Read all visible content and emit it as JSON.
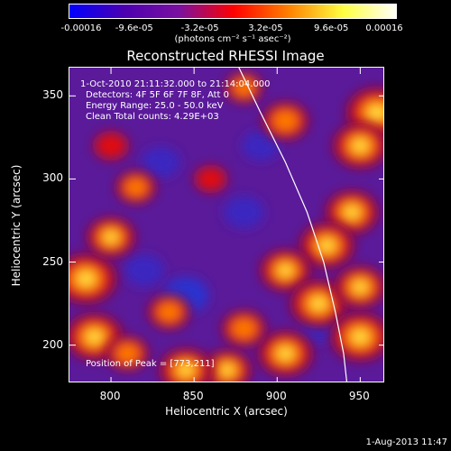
{
  "colorbar": {
    "ticks": [
      "-0.00016",
      "-9.6e-05",
      "-3.2e-05",
      "3.2e-05",
      "9.6e-05",
      "0.00016"
    ],
    "units_label": "(photons cm⁻² s⁻¹ asec⁻²)",
    "range": [
      -0.00016,
      0.00016
    ],
    "colors": [
      "#0000ff",
      "#4b00b0",
      "#7a10a0",
      "#ff0000",
      "#ff8000",
      "#ffff40",
      "#ffffff"
    ]
  },
  "chart_data": {
    "type": "heatmap",
    "title": "Reconstructed RHESSI Image",
    "xlabel": "Heliocentric X (arcsec)",
    "ylabel": "Heliocentric Y (arcsec)",
    "xlim": [
      775,
      965
    ],
    "ylim": [
      177,
      367
    ],
    "x_ticks": [
      800,
      850,
      900,
      950
    ],
    "y_ticks": [
      200,
      250,
      300,
      350
    ],
    "annotations": {
      "time": "1-Oct-2010 21:11:32.000 to 21:14:04.000",
      "detectors": "Detectors: 4F 5F 6F 7F 8F, Att 0",
      "energy": "Energy Range: 25.0 - 50.0 keV",
      "clean": "Clean    Total counts: 4.29E+03",
      "peak": "Position of Peak = [773,211]"
    },
    "limb_curve": [
      [
        877,
        367
      ],
      [
        890,
        340
      ],
      [
        905,
        310
      ],
      [
        918,
        280
      ],
      [
        928,
        250
      ],
      [
        935,
        220
      ],
      [
        940,
        195
      ],
      [
        942,
        177
      ]
    ],
    "hotspots": [
      {
        "x": 785,
        "y": 240,
        "v": 1.0
      },
      {
        "x": 790,
        "y": 205,
        "v": 0.9
      },
      {
        "x": 800,
        "y": 265,
        "v": 0.7
      },
      {
        "x": 960,
        "y": 340,
        "v": 1.0
      },
      {
        "x": 950,
        "y": 320,
        "v": 0.85
      },
      {
        "x": 945,
        "y": 280,
        "v": 0.8
      },
      {
        "x": 930,
        "y": 260,
        "v": 0.85
      },
      {
        "x": 905,
        "y": 245,
        "v": 0.75
      },
      {
        "x": 925,
        "y": 225,
        "v": 0.9
      },
      {
        "x": 950,
        "y": 205,
        "v": 0.95
      },
      {
        "x": 905,
        "y": 195,
        "v": 0.85
      },
      {
        "x": 880,
        "y": 210,
        "v": 0.6
      },
      {
        "x": 870,
        "y": 185,
        "v": 0.7
      },
      {
        "x": 845,
        "y": 185,
        "v": 0.8
      },
      {
        "x": 810,
        "y": 195,
        "v": 0.55
      },
      {
        "x": 835,
        "y": 220,
        "v": 0.55
      },
      {
        "x": 905,
        "y": 335,
        "v": 0.65
      },
      {
        "x": 880,
        "y": 355,
        "v": 0.45
      },
      {
        "x": 800,
        "y": 320,
        "v": 0.4
      },
      {
        "x": 815,
        "y": 295,
        "v": 0.5
      },
      {
        "x": 860,
        "y": 300,
        "v": 0.35
      },
      {
        "x": 950,
        "y": 235,
        "v": 0.75
      }
    ],
    "coldspots": [
      {
        "x": 845,
        "y": 230,
        "v": -0.7
      },
      {
        "x": 820,
        "y": 245,
        "v": -0.5
      },
      {
        "x": 880,
        "y": 280,
        "v": -0.5
      },
      {
        "x": 830,
        "y": 310,
        "v": -0.45
      },
      {
        "x": 890,
        "y": 320,
        "v": -0.4
      },
      {
        "x": 925,
        "y": 210,
        "v": -0.35
      }
    ]
  },
  "footer": {
    "date": "1-Aug-2013 11:47"
  }
}
